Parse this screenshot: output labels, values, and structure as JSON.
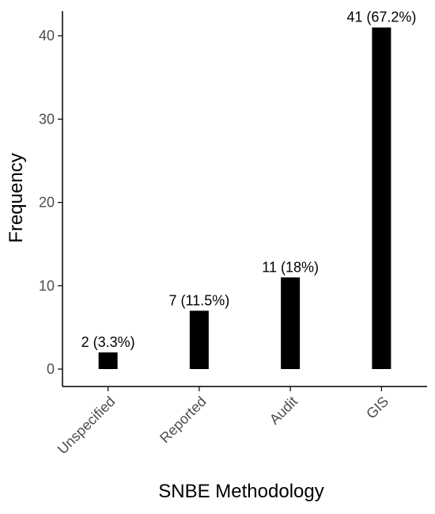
{
  "chart_data": {
    "type": "bar",
    "title": "",
    "xlabel": "SNBE Methodology",
    "ylabel": "Frequency",
    "categories": [
      "Unspecified",
      "Reported",
      "Audit",
      "GIS"
    ],
    "values": [
      2,
      7,
      11,
      41
    ],
    "data_labels": [
      "2 (3.3%)",
      "7 (11.5%)",
      "11 (18%)",
      "41 (67.2%)"
    ],
    "yticks": [
      0,
      10,
      20,
      30,
      40
    ],
    "ytick_labels": [
      "0",
      "10",
      "20",
      "30",
      "40"
    ],
    "ylim": [
      0,
      42
    ],
    "grid": false,
    "legend": "none",
    "bar_color": "#000000",
    "axis_color": "#000000",
    "tick_label_color": "#4d4d4d"
  }
}
